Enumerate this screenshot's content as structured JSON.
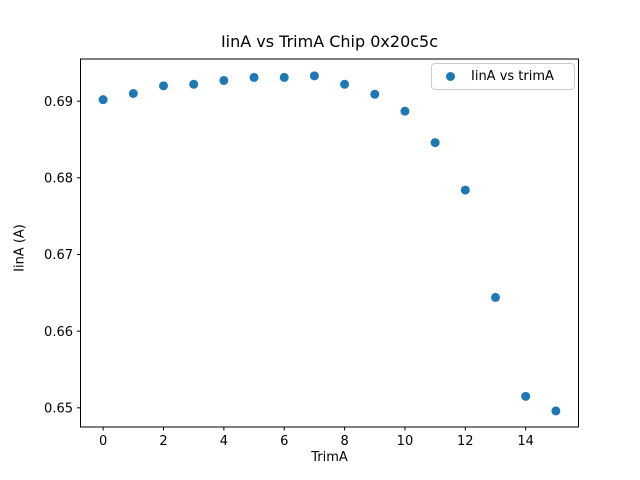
{
  "chart_data": {
    "type": "scatter",
    "title": "IinA vs TrimA Chip 0x20c5c",
    "xlabel": "TrimA",
    "ylabel": "IinA (A)",
    "legend_position": "upper right",
    "grid": false,
    "series": [
      {
        "name": "IinA vs trimA",
        "marker": "circle",
        "color": "#1f77b4",
        "x": [
          0,
          1,
          2,
          3,
          4,
          5,
          6,
          7,
          8,
          9,
          10,
          11,
          12,
          13,
          14,
          15
        ],
        "y": [
          0.6902,
          0.691,
          0.692,
          0.6922,
          0.6927,
          0.6931,
          0.6931,
          0.6933,
          0.6922,
          0.6909,
          0.6887,
          0.6846,
          0.6784,
          0.6644,
          0.6515,
          0.6496
        ]
      }
    ],
    "xlim": [
      -0.75,
      15.75
    ],
    "ylim": [
      0.6475,
      0.6955
    ],
    "xticks": {
      "values": [
        0,
        2,
        4,
        6,
        8,
        10,
        12,
        14
      ],
      "labels": [
        "0",
        "2",
        "4",
        "6",
        "8",
        "10",
        "12",
        "14"
      ]
    },
    "yticks": {
      "values": [
        0.65,
        0.66,
        0.67,
        0.68,
        0.69
      ],
      "labels": [
        "0.65",
        "0.66",
        "0.67",
        "0.68",
        "0.69"
      ]
    }
  },
  "colors": {
    "marker": "#1f77b4",
    "axis": "#000000",
    "legend_border": "#cccccc",
    "background": "#ffffff"
  }
}
